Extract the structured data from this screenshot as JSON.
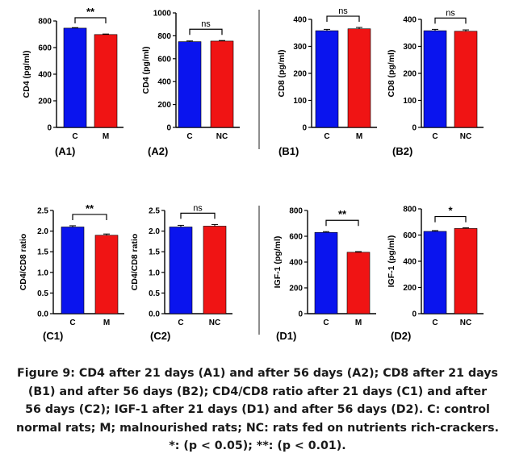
{
  "colors": {
    "control": "#0a14ee",
    "treated": "#f01414",
    "axis": "#000000",
    "divider": "#444444"
  },
  "charts": [
    {
      "panel": "(A1)",
      "ylabel": "CD4 (pg/ml)",
      "ylim": [
        0,
        800
      ],
      "yticks": [
        "0",
        "200",
        "400",
        "600",
        "800"
      ],
      "categories": [
        "C",
        "M"
      ],
      "values": [
        746,
        698
      ],
      "errors": [
        4,
        4
      ],
      "significance": "**"
    },
    {
      "panel": "(A2)",
      "ylabel": "CD4 (pg/ml)",
      "ylim": [
        0,
        1000
      ],
      "yticks": [
        "0",
        "200",
        "400",
        "600",
        "800",
        "1000"
      ],
      "categories": [
        "C",
        "NC"
      ],
      "values": [
        749,
        754
      ],
      "errors": [
        6,
        5
      ],
      "significance": "ns"
    },
    {
      "panel": "(B1)",
      "ylabel": "CD8 (pg/ml)",
      "ylim": [
        0,
        400
      ],
      "yticks": [
        "0",
        "100",
        "200",
        "300",
        "400"
      ],
      "categories": [
        "C",
        "M"
      ],
      "values": [
        358,
        365
      ],
      "errors": [
        5,
        5
      ],
      "significance": "ns"
    },
    {
      "panel": "(B2)",
      "ylabel": "CD8 (pg/ml)",
      "ylim": [
        0,
        400
      ],
      "yticks": [
        "0",
        "100",
        "200",
        "300",
        "400"
      ],
      "categories": [
        "C",
        "NC"
      ],
      "values": [
        358,
        356
      ],
      "errors": [
        5,
        5
      ],
      "significance": "ns"
    },
    {
      "panel": "(C1)",
      "ylabel": "CD4/CD8 ratio",
      "ylim": [
        0,
        2.5
      ],
      "yticks": [
        "0.0",
        "0.5",
        "1.0",
        "1.5",
        "2.0",
        "2.5"
      ],
      "categories": [
        "C",
        "M"
      ],
      "values": [
        2.1,
        1.9
      ],
      "errors": [
        0.03,
        0.03
      ],
      "significance": "**"
    },
    {
      "panel": "(C2)",
      "ylabel": "CD4/CD8 ratio",
      "ylim": [
        0,
        2.5
      ],
      "yticks": [
        "0.0",
        "0.5",
        "1.0",
        "1.5",
        "2.0",
        "2.5"
      ],
      "categories": [
        "C",
        "NC"
      ],
      "values": [
        2.1,
        2.12
      ],
      "errors": [
        0.04,
        0.04
      ],
      "significance": "ns"
    },
    {
      "panel": "(D1)",
      "ylabel": "IGF-1 (pg/ml)",
      "ylim": [
        0,
        800
      ],
      "yticks": [
        "0",
        "200",
        "400",
        "600",
        "800"
      ],
      "categories": [
        "C",
        "M"
      ],
      "values": [
        630,
        476
      ],
      "errors": [
        6,
        5
      ],
      "significance": "**"
    },
    {
      "panel": "(D2)",
      "ylabel": "IGF-1 (pg/ml)",
      "ylim": [
        0,
        800
      ],
      "yticks": [
        "0",
        "200",
        "400",
        "600",
        "800"
      ],
      "categories": [
        "C",
        "NC"
      ],
      "values": [
        628,
        650
      ],
      "errors": [
        6,
        5
      ],
      "significance": "*"
    }
  ],
  "chart_data": [
    {
      "type": "bar",
      "categories": [
        "C",
        "M"
      ],
      "values": [
        746,
        698
      ],
      "ylabel": "CD4 (pg/ml)",
      "ylim": [
        0,
        800
      ],
      "annotations": [
        "**"
      ]
    },
    {
      "type": "bar",
      "categories": [
        "C",
        "NC"
      ],
      "values": [
        749,
        754
      ],
      "ylabel": "CD4 (pg/ml)",
      "ylim": [
        0,
        1000
      ],
      "annotations": [
        "ns"
      ]
    },
    {
      "type": "bar",
      "categories": [
        "C",
        "M"
      ],
      "values": [
        358,
        365
      ],
      "ylabel": "CD8 (pg/ml)",
      "ylim": [
        0,
        400
      ],
      "annotations": [
        "ns"
      ]
    },
    {
      "type": "bar",
      "categories": [
        "C",
        "NC"
      ],
      "values": [
        358,
        356
      ],
      "ylabel": "CD8 (pg/ml)",
      "ylim": [
        0,
        400
      ],
      "annotations": [
        "ns"
      ]
    },
    {
      "type": "bar",
      "categories": [
        "C",
        "M"
      ],
      "values": [
        2.1,
        1.9
      ],
      "ylabel": "CD4/CD8 ratio",
      "ylim": [
        0,
        2.5
      ],
      "annotations": [
        "**"
      ]
    },
    {
      "type": "bar",
      "categories": [
        "C",
        "NC"
      ],
      "values": [
        2.1,
        2.12
      ],
      "ylabel": "CD4/CD8 ratio",
      "ylim": [
        0,
        2.5
      ],
      "annotations": [
        "ns"
      ]
    },
    {
      "type": "bar",
      "categories": [
        "C",
        "M"
      ],
      "values": [
        630,
        476
      ],
      "ylabel": "IGF-1 (pg/ml)",
      "ylim": [
        0,
        800
      ],
      "annotations": [
        "**"
      ]
    },
    {
      "type": "bar",
      "categories": [
        "C",
        "NC"
      ],
      "values": [
        628,
        650
      ],
      "ylabel": "IGF-1 (pg/ml)",
      "ylim": [
        0,
        800
      ],
      "annotations": [
        "*"
      ]
    }
  ],
  "caption": {
    "line1": "Figure 9: CD4 after 21 days (A1) and after 56 days (A2); CD8 after 21 days",
    "line2": "(B1) and after 56 days (B2); CD4/CD8 ratio after 21 days (C1) and after",
    "line3": "56 days (C2); IGF-1 after 21 days (D1) and after 56 days (D2). C: control",
    "line4": "normal rats; M; malnourished rats; NC: rats fed on nutrients rich-crackers.",
    "line5": "*: (p < 0.05); **: (p < 0.01)."
  }
}
